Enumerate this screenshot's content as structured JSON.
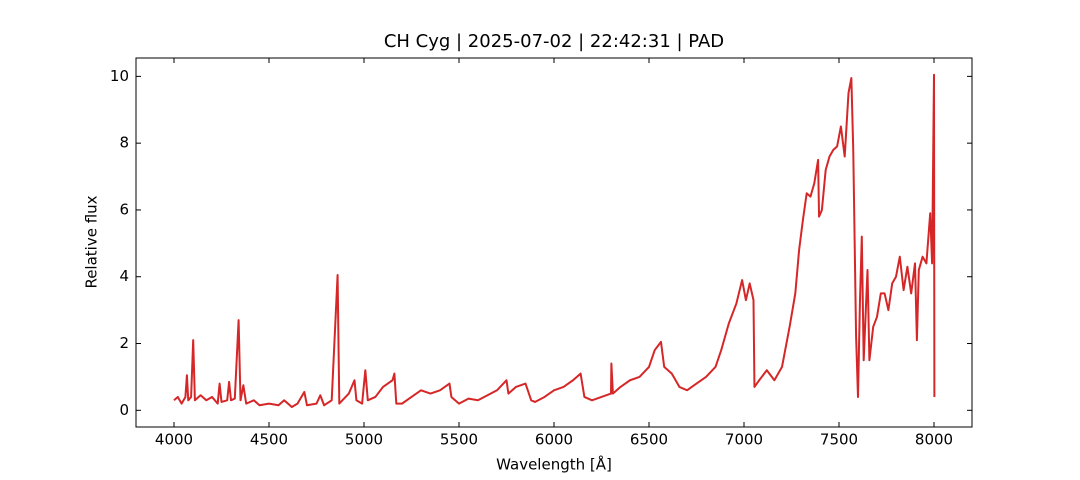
{
  "chart_data": {
    "type": "line",
    "title": "CH Cyg | 2025-07-02 | 22:42:31 | PAD",
    "x_label": "Wavelength [Å]",
    "y_label": "Relative flux",
    "color": "#d62728",
    "x": [
      4000,
      4020,
      4040,
      4060,
      4068,
      4075,
      4090,
      4101,
      4110,
      4140,
      4170,
      4200,
      4230,
      4240,
      4250,
      4280,
      4290,
      4300,
      4320,
      4340,
      4350,
      4365,
      4380,
      4420,
      4450,
      4500,
      4550,
      4580,
      4620,
      4650,
      4686,
      4700,
      4750,
      4770,
      4790,
      4830,
      4861,
      4870,
      4920,
      4950,
      4960,
      4990,
      5007,
      5020,
      5060,
      5100,
      5150,
      5160,
      5170,
      5200,
      5250,
      5300,
      5350,
      5400,
      5450,
      5460,
      5500,
      5550,
      5600,
      5650,
      5700,
      5750,
      5760,
      5800,
      5850,
      5880,
      5900,
      5950,
      6000,
      6050,
      6100,
      6140,
      6160,
      6200,
      6250,
      6300,
      6302,
      6310,
      6350,
      6400,
      6450,
      6500,
      6530,
      6563,
      6580,
      6620,
      6660,
      6700,
      6750,
      6800,
      6850,
      6880,
      6920,
      6960,
      6990,
      7010,
      7030,
      7050,
      7055,
      7080,
      7120,
      7160,
      7200,
      7240,
      7270,
      7290,
      7310,
      7330,
      7350,
      7370,
      7390,
      7395,
      7410,
      7430,
      7450,
      7470,
      7490,
      7510,
      7530,
      7550,
      7565,
      7575,
      7590,
      7600,
      7610,
      7620,
      7630,
      7650,
      7660,
      7680,
      7700,
      7720,
      7740,
      7760,
      7780,
      7800,
      7820,
      7840,
      7860,
      7880,
      7900,
      7910,
      7920,
      7940,
      7960,
      7980,
      7990,
      8000,
      8002
    ],
    "values": [
      0.3,
      0.4,
      0.2,
      0.4,
      1.05,
      0.3,
      0.4,
      2.1,
      0.3,
      0.45,
      0.3,
      0.4,
      0.2,
      0.8,
      0.25,
      0.3,
      0.85,
      0.3,
      0.35,
      2.7,
      0.3,
      0.75,
      0.2,
      0.3,
      0.15,
      0.2,
      0.15,
      0.3,
      0.1,
      0.2,
      0.55,
      0.15,
      0.2,
      0.45,
      0.15,
      0.3,
      4.05,
      0.2,
      0.5,
      0.9,
      0.3,
      0.2,
      1.2,
      0.3,
      0.4,
      0.7,
      0.9,
      1.1,
      0.2,
      0.2,
      0.4,
      0.6,
      0.5,
      0.6,
      0.8,
      0.4,
      0.2,
      0.35,
      0.3,
      0.45,
      0.6,
      0.9,
      0.5,
      0.7,
      0.8,
      0.3,
      0.25,
      0.4,
      0.6,
      0.7,
      0.9,
      1.1,
      0.4,
      0.3,
      0.4,
      0.5,
      1.4,
      0.5,
      0.7,
      0.9,
      1.0,
      1.3,
      1.8,
      2.05,
      1.3,
      1.1,
      0.7,
      0.6,
      0.8,
      1.0,
      1.3,
      1.8,
      2.6,
      3.2,
      3.9,
      3.3,
      3.8,
      3.3,
      0.7,
      0.9,
      1.2,
      0.9,
      1.3,
      2.5,
      3.5,
      4.8,
      5.7,
      6.5,
      6.4,
      6.8,
      7.5,
      5.8,
      6.0,
      7.2,
      7.6,
      7.8,
      7.9,
      8.5,
      7.6,
      9.5,
      9.95,
      7.8,
      2.2,
      0.4,
      3.2,
      5.2,
      1.5,
      4.2,
      1.5,
      2.5,
      2.8,
      3.5,
      3.5,
      3.0,
      3.8,
      4.0,
      4.6,
      3.6,
      4.3,
      3.5,
      4.4,
      2.1,
      4.2,
      4.6,
      4.4,
      5.9,
      4.4,
      10.05,
      0.4
    ],
    "xlim": [
      3800,
      8200
    ],
    "xticks": [
      4000,
      4500,
      5000,
      5500,
      6000,
      6500,
      7000,
      7500,
      8000
    ],
    "ylim": [
      -0.5,
      10.55
    ],
    "yticks": [
      0,
      2,
      4,
      6,
      8,
      10
    ],
    "grid": false
  }
}
